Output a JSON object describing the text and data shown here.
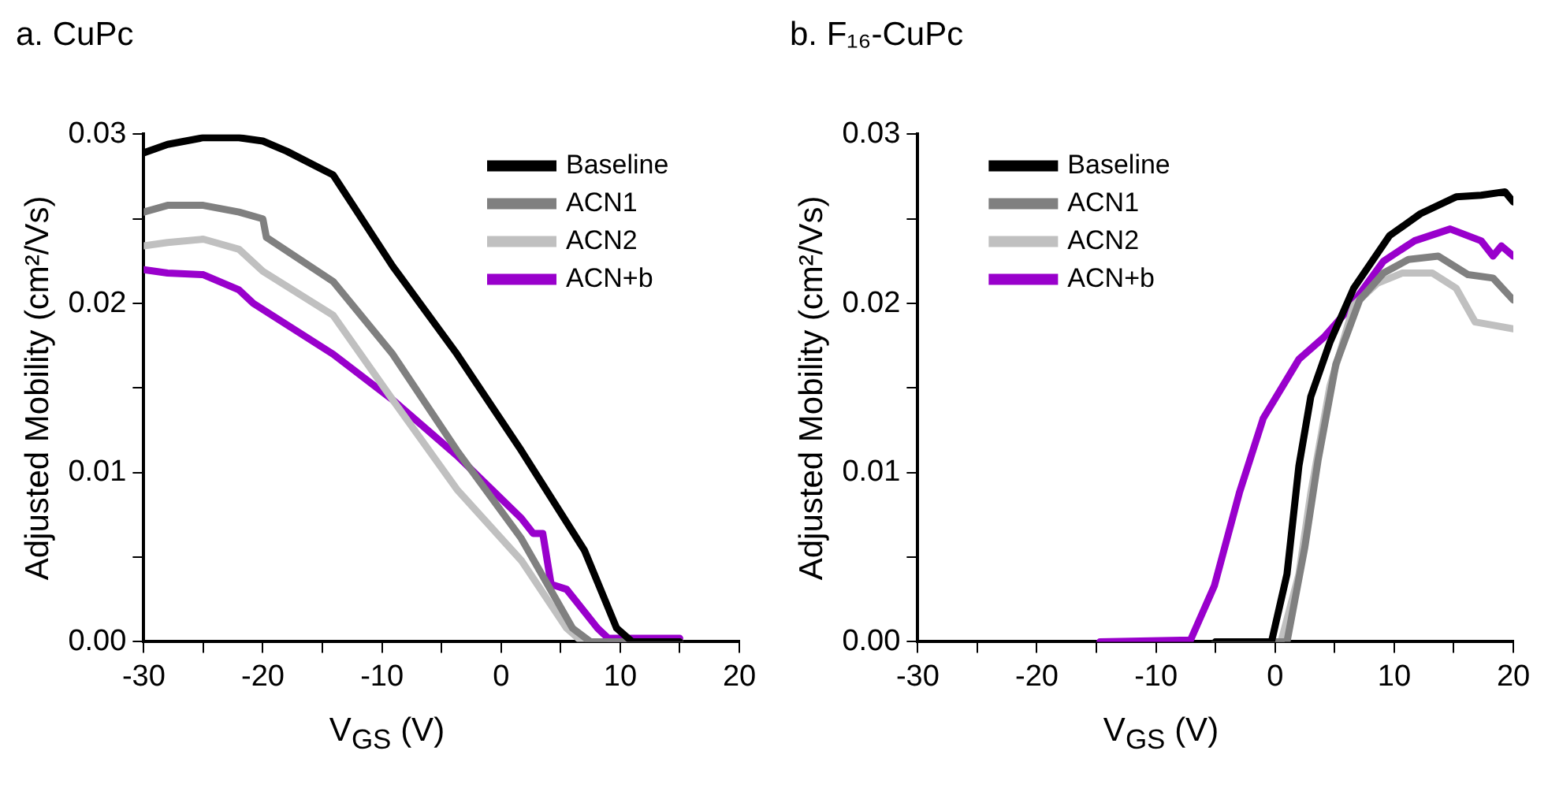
{
  "chart_data": [
    {
      "type": "line",
      "title": "a. CuPc",
      "xlabel": "V$_{GS}$ (V)",
      "ylabel": "Adjusted Mobility (cm²/Vs)",
      "xlim": [
        -30,
        20
      ],
      "xticks": [
        -30,
        {
          "value": -25,
          "label": null
        },
        -20,
        {
          "value": -15,
          "label": null
        },
        -10,
        {
          "value": -5,
          "label": null
        },
        0,
        {
          "value": 5,
          "label": null
        },
        10,
        {
          "value": 15,
          "label": null
        },
        20
      ],
      "ylim": [
        0,
        0.03
      ],
      "yticks": [
        {
          "value": 0,
          "label": "0.00"
        },
        {
          "value": 0.005,
          "label": null
        },
        {
          "value": 0.01,
          "label": "0.01"
        },
        {
          "value": 0.015,
          "label": null
        },
        {
          "value": 0.02,
          "label": "0.02"
        },
        {
          "value": 0.025,
          "label": null
        },
        {
          "value": 0.03,
          "label": "0.03"
        }
      ],
      "legend": "top right",
      "grid": false,
      "marker": "none",
      "line_style": "solid",
      "series": [
        {
          "name": "Baseline",
          "color": "#000000",
          "x": [
            -30,
            -28,
            -25,
            -22,
            -20,
            -18,
            -14.1,
            -9.1,
            -3.7,
            1.7,
            7.0,
            9.7,
            11,
            15
          ],
          "values": [
            0.0289,
            0.0294,
            0.0298,
            0.0298,
            0.0296,
            0.029,
            0.0276,
            0.0222,
            0.017,
            0.0113,
            0.0054,
            0.0008,
            0,
            0
          ]
        },
        {
          "name": "ACN1",
          "color": "#808080",
          "x": [
            -30,
            -28,
            -25,
            -22,
            -20,
            -19.7,
            -14.1,
            -9.1,
            -3.7,
            1.7,
            6.0,
            7.5,
            15
          ],
          "values": [
            0.0254,
            0.0258,
            0.0258,
            0.0254,
            0.025,
            0.0239,
            0.0213,
            0.017,
            0.0113,
            0.0061,
            0.0008,
            0,
            0
          ]
        },
        {
          "name": "ACN2",
          "color": "#c0c0c0",
          "x": [
            -30,
            -28,
            -25,
            -22,
            -20,
            -14.1,
            -9.1,
            -3.7,
            1.7,
            5.5,
            6.8,
            15
          ],
          "values": [
            0.0234,
            0.0236,
            0.0238,
            0.0232,
            0.0219,
            0.0193,
            0.0143,
            0.009,
            0.0048,
            0.0008,
            0,
            0
          ]
        },
        {
          "name": "ACN+b",
          "color": "#9900cc",
          "x": [
            -30,
            -28,
            -25,
            -22,
            -20.8,
            -14.1,
            -9.1,
            -3.7,
            1.7,
            2.7,
            3.5,
            4.2,
            5.5,
            8.1,
            9,
            15
          ],
          "values": [
            0.022,
            0.0218,
            0.0217,
            0.0208,
            0.02,
            0.017,
            0.0143,
            0.011,
            0.0073,
            0.0064,
            0.0064,
            0.0034,
            0.0031,
            0.0008,
            0.0002,
            0.0002
          ]
        }
      ]
    },
    {
      "type": "line",
      "title": "b. F₁₆-CuPc",
      "xlabel": "V$_{GS}$ (V)",
      "ylabel": "Adjusted Mobility (cm²/Vs)",
      "xlim": [
        -30,
        20
      ],
      "xticks": [
        -30,
        {
          "value": -25,
          "label": null
        },
        -20,
        {
          "value": -15,
          "label": null
        },
        -10,
        {
          "value": -5,
          "label": null
        },
        0,
        {
          "value": 5,
          "label": null
        },
        10,
        {
          "value": 15,
          "label": null
        },
        20
      ],
      "ylim": [
        0,
        0.03
      ],
      "yticks": [
        {
          "value": 0,
          "label": "0.00"
        },
        {
          "value": 0.005,
          "label": null
        },
        {
          "value": 0.01,
          "label": "0.01"
        },
        {
          "value": 0.015,
          "label": null
        },
        {
          "value": 0.02,
          "label": "0.02"
        },
        {
          "value": 0.025,
          "label": null
        },
        {
          "value": 0.03,
          "label": "0.03"
        }
      ],
      "legend": "top left",
      "grid": false,
      "marker": "none",
      "line_style": "solid",
      "series": [
        {
          "name": "Baseline",
          "color": "#000000",
          "x": [
            -5,
            -0.3,
            1.0,
            2.0,
            3.0,
            4.6,
            6.6,
            9.6,
            12.2,
            15.2,
            17.3,
            19.3,
            20
          ],
          "values": [
            0,
            0,
            0.004,
            0.0104,
            0.0145,
            0.0177,
            0.0209,
            0.024,
            0.0253,
            0.0263,
            0.0264,
            0.0266,
            0.026
          ]
        },
        {
          "name": "ACN1",
          "color": "#808080",
          "x": [
            -5,
            1.0,
            2.5,
            3.6,
            5.1,
            7.1,
            9.1,
            11.2,
            13.7,
            16.2,
            18.3,
            20
          ],
          "values": [
            0,
            0,
            0.0056,
            0.0107,
            0.0164,
            0.0202,
            0.0218,
            0.0226,
            0.0228,
            0.0217,
            0.0215,
            0.0202
          ]
        },
        {
          "name": "ACN2",
          "color": "#c0c0c0",
          "x": [
            -5,
            0.5,
            2.0,
            3.0,
            4.6,
            6.6,
            8.6,
            10.7,
            13.2,
            15.2,
            16.8,
            20
          ],
          "values": [
            0,
            0,
            0.004,
            0.0088,
            0.0151,
            0.0199,
            0.0212,
            0.0218,
            0.0218,
            0.0209,
            0.0189,
            0.0185
          ]
        },
        {
          "name": "ACN+b",
          "color": "#9900cc",
          "x": [
            -14.7,
            -7.1,
            -5.1,
            -3.0,
            -1.0,
            2.0,
            4.1,
            6.1,
            9.1,
            11.7,
            14.7,
            17.3,
            18.3,
            19,
            20
          ],
          "values": [
            0,
            0.0001,
            0.0033,
            0.0088,
            0.0132,
            0.0167,
            0.018,
            0.0196,
            0.0225,
            0.0237,
            0.0244,
            0.0237,
            0.0228,
            0.0234,
            0.0228
          ]
        }
      ]
    }
  ]
}
